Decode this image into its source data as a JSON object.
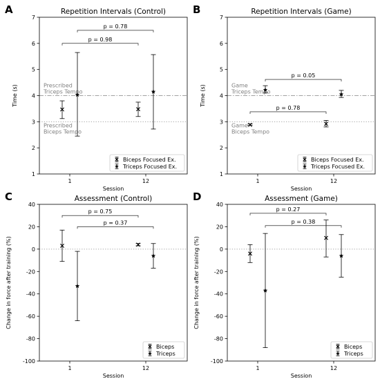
{
  "chart_data": [
    {
      "type": "scatter",
      "panel": "A",
      "title": "Repetition Intervals (Control)",
      "xlabel": "Session",
      "ylabel": "Time (s)",
      "ylim": [
        1,
        7
      ],
      "yticks": [
        1,
        2,
        3,
        4,
        5,
        6,
        7
      ],
      "categories": [
        "1",
        "12"
      ],
      "legend_position": "lower-right",
      "series": [
        {
          "name": "Biceps Focused Ex.",
          "marker": "x",
          "points": [
            {
              "category": "1",
              "y": 3.47,
              "low": 3.12,
              "high": 3.8
            },
            {
              "category": "12",
              "y": 3.48,
              "low": 3.2,
              "high": 3.75
            }
          ]
        },
        {
          "name": "Triceps Focused Ex.",
          "marker": "star",
          "points": [
            {
              "category": "1",
              "y": 4.03,
              "low": 2.45,
              "high": 5.65
            },
            {
              "category": "12",
              "y": 4.15,
              "low": 2.72,
              "high": 5.57
            }
          ]
        }
      ],
      "reference_lines": [
        {
          "y": 4.0,
          "style": "dashdot",
          "label_lines": [
            "Prescribed",
            "Triceps Tempo"
          ]
        },
        {
          "y": 3.0,
          "style": "dotted",
          "label_lines": [
            "Prescribed",
            "Biceps Tempo"
          ]
        }
      ],
      "annotations": [
        {
          "text": "p = 0.78",
          "y": 6.5,
          "from": [
            "1",
            "triceps"
          ],
          "to": [
            "12",
            "triceps"
          ]
        },
        {
          "text": "p = 0.98",
          "y": 6.0,
          "from": [
            "1",
            "biceps"
          ],
          "to": [
            "12",
            "biceps"
          ]
        }
      ]
    },
    {
      "type": "scatter",
      "panel": "B",
      "title": "Repetition Intervals (Game)",
      "xlabel": "Session",
      "ylabel": "Time (s)",
      "ylim": [
        1,
        7
      ],
      "yticks": [
        1,
        2,
        3,
        4,
        5,
        6,
        7
      ],
      "categories": [
        "1",
        "12"
      ],
      "legend_position": "lower-right",
      "series": [
        {
          "name": "Biceps Focused Ex.",
          "marker": "x",
          "points": [
            {
              "category": "1",
              "y": 2.88,
              "low": 2.86,
              "high": 2.92
            },
            {
              "category": "12",
              "y": 2.92,
              "low": 2.8,
              "high": 3.05
            }
          ]
        },
        {
          "name": "Triceps Focused Ex.",
          "marker": "star",
          "points": [
            {
              "category": "1",
              "y": 4.22,
              "low": 4.1,
              "high": 4.38
            },
            {
              "category": "12",
              "y": 4.05,
              "low": 3.93,
              "high": 4.2
            }
          ]
        }
      ],
      "reference_lines": [
        {
          "y": 4.0,
          "style": "dashdot",
          "label_lines": [
            "Game",
            "Triceps Tempo"
          ]
        },
        {
          "y": 3.0,
          "style": "dotted",
          "label_lines": [
            "Game",
            "Biceps Tempo"
          ]
        }
      ],
      "annotations": [
        {
          "text": "p = 0.05",
          "y": 4.62,
          "from": [
            "1",
            "triceps"
          ],
          "to": [
            "12",
            "triceps"
          ]
        },
        {
          "text": "p = 0.78",
          "y": 3.38,
          "from": [
            "1",
            "biceps"
          ],
          "to": [
            "12",
            "biceps"
          ]
        }
      ]
    },
    {
      "type": "scatter",
      "panel": "C",
      "title": "Assessment (Control)",
      "xlabel": "Session",
      "ylabel": "Change in force after training (%)",
      "ylim": [
        -100,
        40
      ],
      "yticks": [
        -100,
        -80,
        -60,
        -40,
        -20,
        0,
        20,
        40
      ],
      "categories": [
        "1",
        "12"
      ],
      "legend_position": "lower-right",
      "series": [
        {
          "name": "Biceps",
          "marker": "x",
          "points": [
            {
              "category": "1",
              "y": 3,
              "low": -11,
              "high": 17
            },
            {
              "category": "12",
              "y": 4,
              "low": 3,
              "high": 5
            }
          ]
        },
        {
          "name": "Triceps",
          "marker": "star",
          "points": [
            {
              "category": "1",
              "y": -33,
              "low": -64,
              "high": -2
            },
            {
              "category": "12",
              "y": -6,
              "low": -17,
              "high": 5
            }
          ]
        }
      ],
      "reference_lines": [
        {
          "y": 0,
          "style": "dotted",
          "label_lines": []
        }
      ],
      "annotations": [
        {
          "text": "p = 0.75",
          "y": 30,
          "from": [
            "1",
            "biceps"
          ],
          "to": [
            "12",
            "biceps"
          ]
        },
        {
          "text": "p = 0.37",
          "y": 20,
          "from": [
            "1",
            "triceps"
          ],
          "to": [
            "12",
            "triceps"
          ]
        }
      ]
    },
    {
      "type": "scatter",
      "panel": "D",
      "title": "Assessment (Game)",
      "xlabel": "Session",
      "ylabel": "Change in force after training (%)",
      "ylim": [
        -100,
        40
      ],
      "yticks": [
        -100,
        -80,
        -60,
        -40,
        -20,
        0,
        20,
        40
      ],
      "categories": [
        "1",
        "12"
      ],
      "legend_position": "lower-right",
      "series": [
        {
          "name": "Biceps",
          "marker": "x",
          "points": [
            {
              "category": "1",
              "y": -4,
              "low": -12,
              "high": 4
            },
            {
              "category": "12",
              "y": 10,
              "low": -7,
              "high": 26
            }
          ]
        },
        {
          "name": "Triceps",
          "marker": "star",
          "points": [
            {
              "category": "1",
              "y": -37,
              "low": -88,
              "high": 14
            },
            {
              "category": "12",
              "y": -6,
              "low": -25,
              "high": 13
            }
          ]
        }
      ],
      "reference_lines": [
        {
          "y": 0,
          "style": "dotted",
          "label_lines": []
        }
      ],
      "annotations": [
        {
          "text": "p = 0.27",
          "y": 32,
          "from": [
            "1",
            "biceps"
          ],
          "to": [
            "12",
            "biceps"
          ]
        },
        {
          "text": "p = 0.38",
          "y": 21,
          "from": [
            "1",
            "triceps"
          ],
          "to": [
            "12",
            "triceps"
          ]
        }
      ]
    }
  ]
}
